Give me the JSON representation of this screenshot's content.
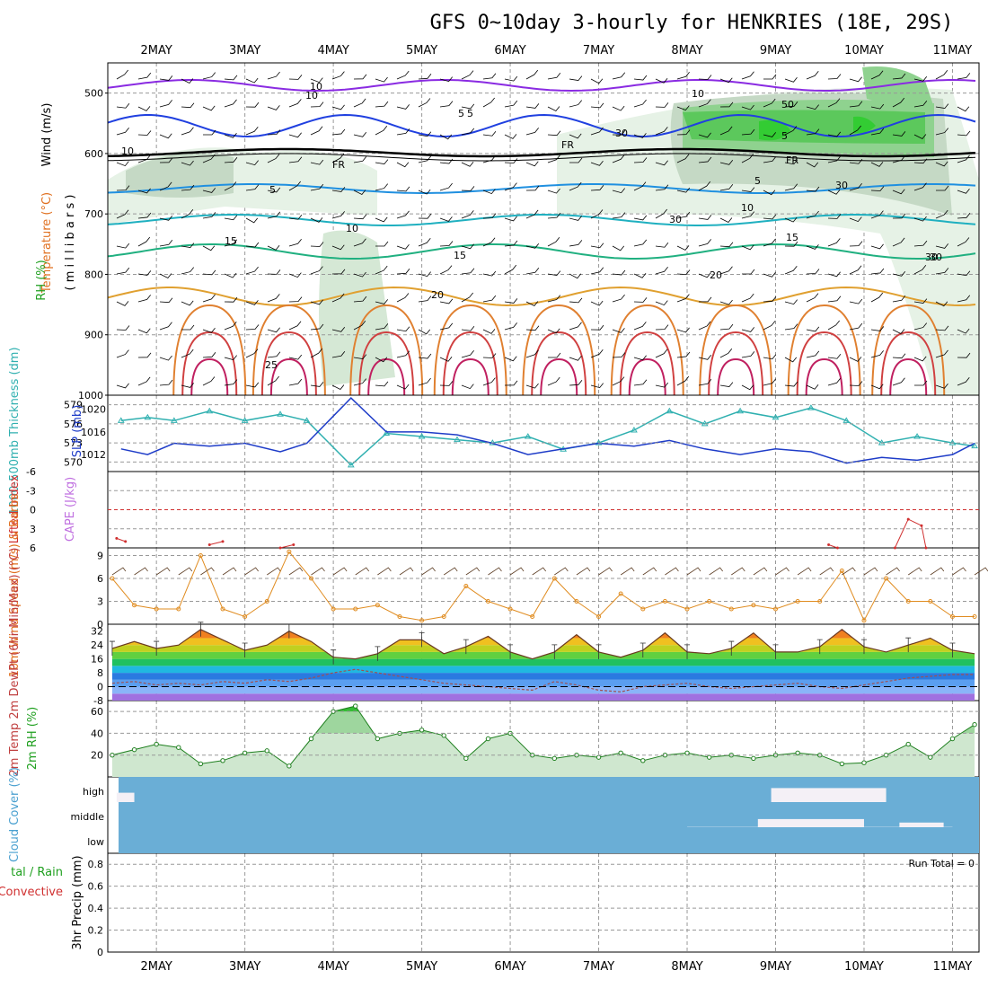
{
  "title": "GFS 0~10day 3-hourly for HENKRIES (18E, 29S)",
  "dates": [
    "2MAY",
    "3MAY",
    "4MAY",
    "5MAY",
    "6MAY",
    "7MAY",
    "8MAY",
    "9MAY",
    "10MAY",
    "11MAY"
  ],
  "panels": {
    "upper_air": {
      "ylabels": [
        {
          "text": "Wind (m/s)",
          "color": "#000000"
        },
        {
          "text": "Temperature (°C)",
          "color": "#e07020"
        },
        {
          "text": "RH (%)",
          "color": "#20a020"
        },
        {
          "text": "( m i l l i b a r s )",
          "color": "#000000"
        }
      ],
      "yticks": [
        "500",
        "600",
        "700",
        "800",
        "900",
        "1000"
      ],
      "contour_labels": [
        "10",
        "10",
        "5",
        "5",
        "5",
        "5",
        "5",
        "10",
        "10",
        "15",
        "15",
        "15",
        "20",
        "20",
        "25",
        "FR",
        "FR",
        "FR",
        "10",
        "30",
        "30",
        "50",
        "30",
        "30",
        "10",
        "30"
      ]
    },
    "thickness_slp": {
      "ylabel_left": "1000-500mb Thickness (dm)",
      "ylabel_right": "SLP (mb)",
      "yticks_left": [
        "579",
        "576",
        "573",
        "570"
      ],
      "yticks_right": [
        "1020",
        "1016",
        "1012"
      ]
    },
    "cape_li": {
      "ylabel_left": "Lifted Index",
      "ylabel_right": "CAPE (J/kg)",
      "yticks": [
        "-6",
        "-3",
        "0",
        "3",
        "6"
      ]
    },
    "wind10m": {
      "ylabel": "10m Wind Speed (m/s) & Barbs",
      "yticks": [
        "9",
        "6",
        "3",
        "0"
      ]
    },
    "temp2m": {
      "ylabel": "2m Temp 2m DewPt (6hr Min/Max) (°C)",
      "yticks": [
        "32",
        "24",
        "16",
        "8",
        "0",
        "-8"
      ]
    },
    "rh2m": {
      "ylabel": "2m RH (%)",
      "yticks": [
        "60",
        "40",
        "20"
      ]
    },
    "cloud": {
      "ylabel": "Cloud Cover (%)",
      "levels": [
        "high",
        "middle",
        "low"
      ]
    },
    "precip": {
      "ylabel": "3hr Precip (mm)",
      "ylabel_left1": "tal / Rain",
      "ylabel_left2": "Convective",
      "yticks": [
        "0.8",
        "0.6",
        "0.4",
        "0.2",
        "0"
      ],
      "run_total": "Run Total = 0"
    }
  },
  "colors": {
    "cloud_bg": "#6aaed6",
    "rh_green": "#33cc33",
    "slp": "#1e3cc8",
    "thickness": "#30b0b0",
    "wind": "#e08c20",
    "li": "#d03030"
  },
  "chart_data": [
    {
      "type": "line",
      "title": "1000-500mb Thickness (dm) / SLP (mb)",
      "xlabel": "",
      "x_days": [
        1.6,
        1.9,
        2.2,
        2.6,
        3.0,
        3.4,
        3.7,
        4.2,
        4.6,
        5.0,
        5.4,
        5.8,
        6.2,
        6.6,
        7.0,
        7.4,
        7.8,
        8.2,
        8.6,
        9.0,
        9.4,
        9.8,
        10.2,
        10.6,
        11.0,
        11.25
      ],
      "series": [
        {
          "name": "1000-500mb Thickness (dm)",
          "axis": "left",
          "ylim": [
            568.5,
            580.5
          ],
          "values": [
            576.5,
            577,
            576.5,
            578,
            576.5,
            577.5,
            576.5,
            569.5,
            574.5,
            574,
            573.5,
            573,
            574,
            572,
            573,
            575,
            578,
            576,
            578,
            577,
            578.5,
            576.5,
            573,
            574,
            573,
            572.5
          ]
        },
        {
          "name": "SLP (mb)",
          "axis": "right",
          "ylim": [
            1009,
            1022.5
          ],
          "values": [
            1013,
            1012,
            1014,
            1013.5,
            1014,
            1012.5,
            1014,
            1022,
            1016,
            1016,
            1015.5,
            1014,
            1012,
            1013,
            1014,
            1013.5,
            1014.5,
            1013,
            1012,
            1013,
            1012.5,
            1010.5,
            1011.5,
            1011,
            1012,
            1014
          ]
        }
      ]
    },
    {
      "type": "line",
      "title": "Lifted Index / CAPE (J/kg)",
      "ylim": [
        6,
        -6
      ],
      "series": [
        {
          "name": "Lifted Index",
          "x_days": [
            1.55,
            1.65
          ],
          "values": [
            4.5,
            5
          ]
        },
        {
          "name": "Lifted Index",
          "x_days": [
            2.6,
            2.75
          ],
          "values": [
            5.5,
            5
          ]
        },
        {
          "name": "Lifted Index",
          "x_days": [
            3.4,
            3.55
          ],
          "values": [
            6,
            5.5
          ]
        },
        {
          "name": "Lifted Index",
          "x_days": [
            9.6,
            9.7
          ],
          "values": [
            5.5,
            6
          ]
        },
        {
          "name": "Lifted Index",
          "x_days": [
            10.35,
            10.5,
            10.65,
            10.7
          ],
          "values": [
            6,
            1.5,
            2.5,
            6
          ]
        }
      ]
    },
    {
      "type": "line",
      "title": "10m Wind Speed (m/s)",
      "ylim": [
        0,
        10
      ],
      "x_days": [
        1.5,
        1.75,
        2.0,
        2.25,
        2.5,
        2.75,
        3.0,
        3.25,
        3.5,
        3.75,
        4.0,
        4.25,
        4.5,
        4.75,
        5.0,
        5.25,
        5.5,
        5.75,
        6.0,
        6.25,
        6.5,
        6.75,
        7.0,
        7.25,
        7.5,
        7.75,
        8.0,
        8.25,
        8.5,
        8.75,
        9.0,
        9.25,
        9.5,
        9.75,
        10.0,
        10.25,
        10.5,
        10.75,
        11.0,
        11.25
      ],
      "values": [
        6,
        2.5,
        2,
        2,
        9,
        2,
        1,
        3,
        9.5,
        6,
        2,
        2,
        2.5,
        1,
        0.5,
        1,
        5,
        3,
        2,
        1,
        6,
        3,
        1,
        4,
        2,
        3,
        2,
        3,
        2,
        2.5,
        2,
        3,
        3,
        7,
        0.5,
        6,
        3,
        3,
        1,
        1
      ]
    },
    {
      "type": "area",
      "title": "2m Temp / 2m DewPt (6hr Min/Max) (°C)",
      "ylim": [
        -8,
        36
      ],
      "x_days": [
        1.5,
        1.75,
        2.0,
        2.25,
        2.5,
        2.75,
        3.0,
        3.25,
        3.5,
        3.75,
        4.0,
        4.25,
        4.5,
        4.75,
        5.0,
        5.25,
        5.5,
        5.75,
        6.0,
        6.25,
        6.5,
        6.75,
        7.0,
        7.25,
        7.5,
        7.75,
        8.0,
        8.25,
        8.5,
        8.75,
        9.0,
        9.25,
        9.5,
        9.75,
        10.0,
        10.25,
        10.5,
        10.75,
        11.0,
        11.25
      ],
      "series": [
        {
          "name": "2m Temp",
          "values": [
            22,
            26,
            22,
            24,
            33,
            27,
            21,
            24,
            32,
            26,
            17,
            16,
            19,
            27,
            27,
            19,
            23,
            29,
            20,
            16,
            20,
            30,
            20,
            17,
            21,
            31,
            20,
            19,
            22,
            31,
            20,
            20,
            23,
            33,
            23,
            20,
            24,
            28,
            21,
            19
          ]
        },
        {
          "name": "2m DewPt",
          "values": [
            2,
            3,
            1,
            2,
            1,
            3,
            2,
            4,
            3,
            5,
            8,
            10,
            8,
            6,
            4,
            2,
            1,
            0,
            -1,
            -2,
            3,
            1,
            -2,
            -3,
            0,
            1,
            2,
            0,
            -1,
            0,
            1,
            2,
            0,
            -1,
            1,
            3,
            5,
            6,
            7,
            7
          ]
        }
      ]
    },
    {
      "type": "area",
      "title": "2m RH (%)",
      "ylim": [
        0,
        70
      ],
      "x_days": [
        1.5,
        1.75,
        2.0,
        2.25,
        2.5,
        2.75,
        3.0,
        3.25,
        3.5,
        3.75,
        4.0,
        4.25,
        4.5,
        4.75,
        5.0,
        5.25,
        5.5,
        5.75,
        6.0,
        6.25,
        6.5,
        6.75,
        7.0,
        7.25,
        7.5,
        7.75,
        8.0,
        8.25,
        8.5,
        8.75,
        9.0,
        9.25,
        9.5,
        9.75,
        10.0,
        10.25,
        10.5,
        10.75,
        11.0,
        11.25
      ],
      "values": [
        20,
        25,
        30,
        27,
        12,
        15,
        22,
        24,
        10,
        35,
        60,
        65,
        35,
        40,
        43,
        38,
        17,
        35,
        40,
        20,
        17,
        20,
        18,
        22,
        15,
        20,
        22,
        18,
        20,
        17,
        20,
        22,
        20,
        12,
        13,
        20,
        30,
        18,
        35,
        48
      ]
    },
    {
      "type": "heatmap",
      "title": "Cloud Cover (%)",
      "levels": [
        "high",
        "middle",
        "low"
      ],
      "coverage_segments": [
        {
          "level": "high",
          "from_day": 1.55,
          "to_day": 1.75,
          "cover": 40
        },
        {
          "level": "high",
          "from_day": 8.95,
          "to_day": 10.25,
          "cover": 60
        },
        {
          "level": "middle",
          "from_day": 8.8,
          "to_day": 10.0,
          "cover": 35
        },
        {
          "level": "middle",
          "from_day": 10.4,
          "to_day": 10.9,
          "cover": 20
        },
        {
          "level": "low",
          "from_day": 8.0,
          "to_day": 11.0,
          "cover": 5
        }
      ]
    },
    {
      "type": "bar",
      "title": "3hr Precip (mm)",
      "ylim": [
        0,
        0.9
      ],
      "run_total": 0,
      "values": []
    }
  ]
}
